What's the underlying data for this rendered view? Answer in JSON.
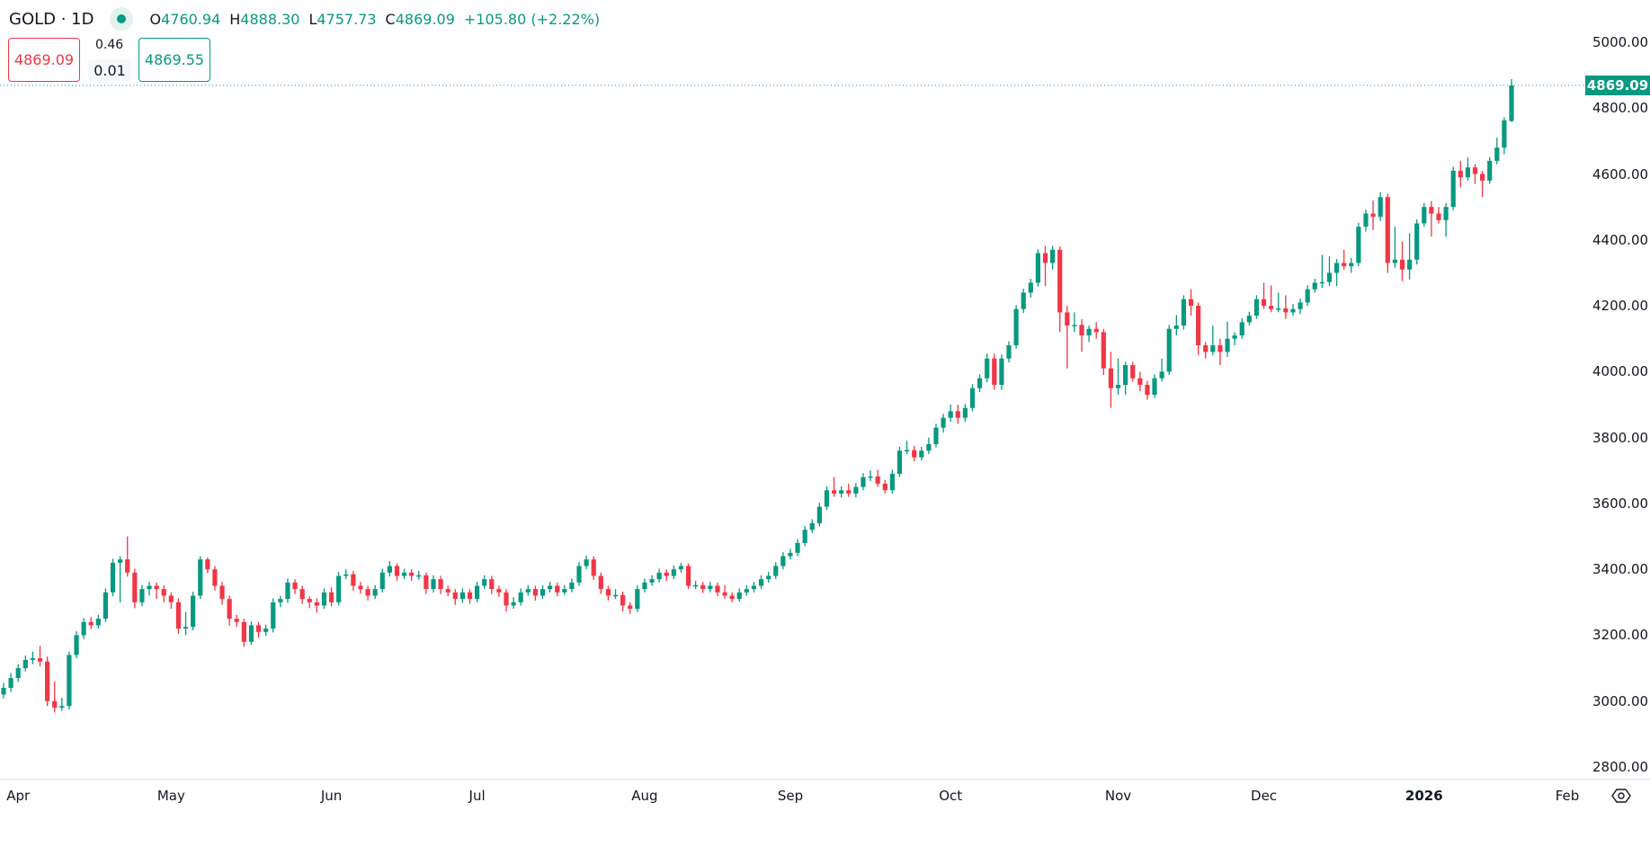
{
  "header": {
    "symbol": "GOLD · 1D",
    "status_color": "#089981",
    "ohlc": [
      {
        "key": "O",
        "value": "4760.94"
      },
      {
        "key": "H",
        "value": "4888.30"
      },
      {
        "key": "L",
        "value": "4757.73"
      },
      {
        "key": "C",
        "value": "4869.09"
      }
    ],
    "change": "+105.80 (+2.22%)"
  },
  "trade": {
    "sell_price": "4869.09",
    "spread_top": "0.46",
    "spread_bottom": "0.01",
    "buy_price": "4869.55"
  },
  "price_tag": "4869.09",
  "settings_icon": "gear-icon",
  "colors": {
    "up": "#089981",
    "down": "#f23645"
  },
  "chart_data": {
    "type": "candlestick",
    "symbol": "GOLD",
    "interval": "1D",
    "ylim": [
      2780,
      5030
    ],
    "yticks": [
      "5000.00",
      "4800.00",
      "4600.00",
      "4400.00",
      "4200.00",
      "4000.00",
      "3800.00",
      "3600.00",
      "3400.00",
      "3200.00",
      "3000.00",
      "2800.00"
    ],
    "xticks": [
      {
        "label": "Apr",
        "index": 2
      },
      {
        "label": "May",
        "index": 23
      },
      {
        "label": "Jun",
        "index": 45
      },
      {
        "label": "Jul",
        "index": 65
      },
      {
        "label": "Aug",
        "index": 88
      },
      {
        "label": "Sep",
        "index": 108
      },
      {
        "label": "Oct",
        "index": 130
      },
      {
        "label": "Nov",
        "index": 153
      },
      {
        "label": "Dec",
        "index": 173
      },
      {
        "label": "2026",
        "index": 195,
        "bold": true
      },
      {
        "label": "Feb",
        "index": 216
      }
    ],
    "last_price": 4869.09,
    "grid": false,
    "ohlc": [
      [
        3020,
        3055,
        3008,
        3040
      ],
      [
        3040,
        3085,
        3028,
        3070
      ],
      [
        3070,
        3112,
        3058,
        3100
      ],
      [
        3100,
        3138,
        3090,
        3125
      ],
      [
        3125,
        3150,
        3112,
        3130
      ],
      [
        3130,
        3168,
        3105,
        3120
      ],
      [
        3120,
        3135,
        2985,
        3000
      ],
      [
        3000,
        3060,
        2965,
        2980
      ],
      [
        2980,
        3010,
        2970,
        2985
      ],
      [
        2985,
        3150,
        2975,
        3140
      ],
      [
        3140,
        3212,
        3130,
        3200
      ],
      [
        3200,
        3252,
        3188,
        3240
      ],
      [
        3240,
        3255,
        3218,
        3230
      ],
      [
        3230,
        3262,
        3220,
        3250
      ],
      [
        3250,
        3342,
        3240,
        3330
      ],
      [
        3330,
        3432,
        3318,
        3420
      ],
      [
        3420,
        3440,
        3300,
        3430
      ],
      [
        3430,
        3500,
        3378,
        3390
      ],
      [
        3390,
        3402,
        3282,
        3300
      ],
      [
        3300,
        3352,
        3288,
        3340
      ],
      [
        3340,
        3362,
        3320,
        3350
      ],
      [
        3350,
        3360,
        3310,
        3340
      ],
      [
        3340,
        3352,
        3300,
        3320
      ],
      [
        3320,
        3330,
        3280,
        3300
      ],
      [
        3300,
        3312,
        3205,
        3220
      ],
      [
        3220,
        3270,
        3200,
        3225
      ],
      [
        3225,
        3332,
        3215,
        3320
      ],
      [
        3320,
        3440,
        3310,
        3430
      ],
      [
        3430,
        3436,
        3388,
        3400
      ],
      [
        3400,
        3410,
        3335,
        3350
      ],
      [
        3350,
        3362,
        3292,
        3310
      ],
      [
        3310,
        3320,
        3228,
        3250
      ],
      [
        3250,
        3262,
        3225,
        3240
      ],
      [
        3240,
        3250,
        3165,
        3180
      ],
      [
        3180,
        3242,
        3170,
        3230
      ],
      [
        3230,
        3240,
        3192,
        3210
      ],
      [
        3210,
        3232,
        3198,
        3220
      ],
      [
        3220,
        3312,
        3208,
        3300
      ],
      [
        3300,
        3320,
        3285,
        3310
      ],
      [
        3310,
        3372,
        3298,
        3360
      ],
      [
        3360,
        3370,
        3325,
        3340
      ],
      [
        3340,
        3350,
        3295,
        3310
      ],
      [
        3310,
        3318,
        3282,
        3300
      ],
      [
        3300,
        3312,
        3268,
        3290
      ],
      [
        3290,
        3342,
        3280,
        3330
      ],
      [
        3330,
        3345,
        3288,
        3300
      ],
      [
        3300,
        3392,
        3290,
        3380
      ],
      [
        3380,
        3400,
        3370,
        3385
      ],
      [
        3385,
        3395,
        3335,
        3350
      ],
      [
        3350,
        3362,
        3326,
        3340
      ],
      [
        3340,
        3350,
        3305,
        3320
      ],
      [
        3320,
        3352,
        3310,
        3340
      ],
      [
        3340,
        3402,
        3330,
        3390
      ],
      [
        3390,
        3425,
        3378,
        3410
      ],
      [
        3410,
        3418,
        3365,
        3380
      ],
      [
        3380,
        3402,
        3370,
        3390
      ],
      [
        3390,
        3400,
        3365,
        3380
      ],
      [
        3380,
        3395,
        3368,
        3382
      ],
      [
        3382,
        3390,
        3325,
        3340
      ],
      [
        3340,
        3382,
        3330,
        3370
      ],
      [
        3370,
        3380,
        3325,
        3340
      ],
      [
        3340,
        3350,
        3318,
        3330
      ],
      [
        3330,
        3340,
        3292,
        3310
      ],
      [
        3310,
        3342,
        3298,
        3330
      ],
      [
        3330,
        3340,
        3295,
        3310
      ],
      [
        3310,
        3362,
        3300,
        3350
      ],
      [
        3350,
        3382,
        3340,
        3370
      ],
      [
        3370,
        3380,
        3325,
        3340
      ],
      [
        3340,
        3350,
        3316,
        3330
      ],
      [
        3330,
        3340,
        3272,
        3290
      ],
      [
        3290,
        3315,
        3280,
        3300
      ],
      [
        3300,
        3342,
        3290,
        3330
      ],
      [
        3330,
        3352,
        3320,
        3340
      ],
      [
        3340,
        3350,
        3305,
        3320
      ],
      [
        3320,
        3352,
        3310,
        3340
      ],
      [
        3340,
        3362,
        3330,
        3350
      ],
      [
        3350,
        3360,
        3318,
        3330
      ],
      [
        3330,
        3352,
        3322,
        3340
      ],
      [
        3340,
        3372,
        3330,
        3360
      ],
      [
        3360,
        3422,
        3350,
        3410
      ],
      [
        3410,
        3442,
        3400,
        3430
      ],
      [
        3430,
        3440,
        3368,
        3380
      ],
      [
        3380,
        3390,
        3325,
        3340
      ],
      [
        3340,
        3350,
        3305,
        3320
      ],
      [
        3320,
        3340,
        3310,
        3322
      ],
      [
        3322,
        3332,
        3272,
        3290
      ],
      [
        3290,
        3300,
        3265,
        3280
      ],
      [
        3280,
        3352,
        3270,
        3340
      ],
      [
        3340,
        3372,
        3330,
        3360
      ],
      [
        3360,
        3382,
        3350,
        3370
      ],
      [
        3370,
        3402,
        3360,
        3390
      ],
      [
        3390,
        3400,
        3365,
        3380
      ],
      [
        3380,
        3412,
        3370,
        3400
      ],
      [
        3400,
        3420,
        3390,
        3410
      ],
      [
        3410,
        3418,
        3340,
        3350
      ],
      [
        3350,
        3365,
        3340,
        3352
      ],
      [
        3352,
        3362,
        3328,
        3340
      ],
      [
        3340,
        3362,
        3330,
        3350
      ],
      [
        3350,
        3360,
        3318,
        3330
      ],
      [
        3330,
        3352,
        3310,
        3320
      ],
      [
        3320,
        3330,
        3300,
        3310
      ],
      [
        3310,
        3342,
        3302,
        3330
      ],
      [
        3330,
        3352,
        3320,
        3340
      ],
      [
        3340,
        3362,
        3330,
        3350
      ],
      [
        3350,
        3382,
        3340,
        3370
      ],
      [
        3370,
        3392,
        3360,
        3380
      ],
      [
        3380,
        3422,
        3370,
        3410
      ],
      [
        3410,
        3452,
        3400,
        3440
      ],
      [
        3440,
        3462,
        3430,
        3450
      ],
      [
        3450,
        3492,
        3440,
        3480
      ],
      [
        3480,
        3532,
        3470,
        3520
      ],
      [
        3520,
        3552,
        3510,
        3540
      ],
      [
        3540,
        3602,
        3530,
        3590
      ],
      [
        3590,
        3652,
        3580,
        3640
      ],
      [
        3640,
        3680,
        3620,
        3630
      ],
      [
        3630,
        3652,
        3618,
        3640
      ],
      [
        3640,
        3660,
        3620,
        3630
      ],
      [
        3630,
        3662,
        3618,
        3650
      ],
      [
        3650,
        3692,
        3640,
        3680
      ],
      [
        3680,
        3700,
        3668,
        3682
      ],
      [
        3682,
        3702,
        3650,
        3660
      ],
      [
        3660,
        3672,
        3630,
        3640
      ],
      [
        3640,
        3702,
        3630,
        3690
      ],
      [
        3690,
        3772,
        3680,
        3760
      ],
      [
        3760,
        3790,
        3750,
        3762
      ],
      [
        3762,
        3775,
        3728,
        3740
      ],
      [
        3740,
        3772,
        3730,
        3760
      ],
      [
        3760,
        3800,
        3750,
        3780
      ],
      [
        3780,
        3842,
        3770,
        3830
      ],
      [
        3830,
        3872,
        3815,
        3860
      ],
      [
        3860,
        3900,
        3848,
        3880
      ],
      [
        3880,
        3900,
        3842,
        3860
      ],
      [
        3860,
        3902,
        3848,
        3890
      ],
      [
        3890,
        3962,
        3880,
        3950
      ],
      [
        3950,
        3992,
        3938,
        3980
      ],
      [
        3980,
        4055,
        3968,
        4040
      ],
      [
        4040,
        4055,
        3945,
        3960
      ],
      [
        3960,
        4052,
        3945,
        4040
      ],
      [
        4040,
        4092,
        4028,
        4080
      ],
      [
        4080,
        4202,
        4070,
        4190
      ],
      [
        4190,
        4252,
        4178,
        4240
      ],
      [
        4240,
        4282,
        4225,
        4270
      ],
      [
        4270,
        4372,
        4258,
        4360
      ],
      [
        4360,
        4382,
        4260,
        4330
      ],
      [
        4330,
        4382,
        4310,
        4370
      ],
      [
        4370,
        4380,
        4120,
        4180
      ],
      [
        4180,
        4200,
        4010,
        4140
      ],
      [
        4140,
        4180,
        4120,
        4142
      ],
      [
        4142,
        4160,
        4060,
        4110
      ],
      [
        4110,
        4140,
        4090,
        4130
      ],
      [
        4130,
        4150,
        4100,
        4120
      ],
      [
        4120,
        4130,
        3990,
        4010
      ],
      [
        4010,
        4060,
        3890,
        3950
      ],
      [
        3950,
        4040,
        3930,
        3960
      ],
      [
        3960,
        4030,
        3930,
        4020
      ],
      [
        4020,
        4030,
        3970,
        3980
      ],
      [
        3980,
        4000,
        3940,
        3960
      ],
      [
        3960,
        3972,
        3915,
        3930
      ],
      [
        3930,
        3992,
        3920,
        3980
      ],
      [
        3980,
        4040,
        3970,
        4000
      ],
      [
        4000,
        4142,
        3990,
        4130
      ],
      [
        4130,
        4172,
        4110,
        4140
      ],
      [
        4140,
        4232,
        4128,
        4220
      ],
      [
        4220,
        4250,
        4170,
        4200
      ],
      [
        4200,
        4210,
        4050,
        4080
      ],
      [
        4080,
        4090,
        4040,
        4060
      ],
      [
        4060,
        4140,
        4050,
        4080
      ],
      [
        4080,
        4100,
        4020,
        4060
      ],
      [
        4060,
        4152,
        4045,
        4100
      ],
      [
        4100,
        4120,
        4080,
        4110
      ],
      [
        4110,
        4162,
        4100,
        4150
      ],
      [
        4150,
        4182,
        4140,
        4170
      ],
      [
        4170,
        4232,
        4160,
        4220
      ],
      [
        4220,
        4270,
        4190,
        4200
      ],
      [
        4200,
        4262,
        4180,
        4190
      ],
      [
        4190,
        4240,
        4180,
        4192
      ],
      [
        4192,
        4232,
        4160,
        4180
      ],
      [
        4180,
        4205,
        4170,
        4190
      ],
      [
        4190,
        4222,
        4175,
        4210
      ],
      [
        4210,
        4262,
        4200,
        4250
      ],
      [
        4250,
        4282,
        4240,
        4270
      ],
      [
        4270,
        4355,
        4255,
        4272
      ],
      [
        4272,
        4350,
        4260,
        4300
      ],
      [
        4300,
        4342,
        4260,
        4330
      ],
      [
        4330,
        4370,
        4310,
        4320
      ],
      [
        4320,
        4345,
        4300,
        4330
      ],
      [
        4330,
        4452,
        4320,
        4440
      ],
      [
        4440,
        4492,
        4425,
        4480
      ],
      [
        4480,
        4520,
        4430,
        4470
      ],
      [
        4470,
        4545,
        4458,
        4530
      ],
      [
        4530,
        4540,
        4300,
        4330
      ],
      [
        4330,
        4440,
        4315,
        4340
      ],
      [
        4340,
        4395,
        4275,
        4310
      ],
      [
        4310,
        4420,
        4280,
        4340
      ],
      [
        4340,
        4462,
        4325,
        4450
      ],
      [
        4450,
        4512,
        4440,
        4500
      ],
      [
        4500,
        4518,
        4410,
        4480
      ],
      [
        4480,
        4500,
        4450,
        4460
      ],
      [
        4460,
        4512,
        4410,
        4500
      ],
      [
        4500,
        4622,
        4490,
        4610
      ],
      [
        4610,
        4640,
        4560,
        4590
      ],
      [
        4590,
        4650,
        4580,
        4620
      ],
      [
        4620,
        4630,
        4570,
        4600
      ],
      [
        4600,
        4610,
        4530,
        4580
      ],
      [
        4580,
        4652,
        4570,
        4640
      ],
      [
        4640,
        4710,
        4630,
        4680
      ],
      [
        4680,
        4772,
        4660,
        4763
      ],
      [
        4760.94,
        4888.3,
        4757.73,
        4869.09
      ]
    ]
  }
}
